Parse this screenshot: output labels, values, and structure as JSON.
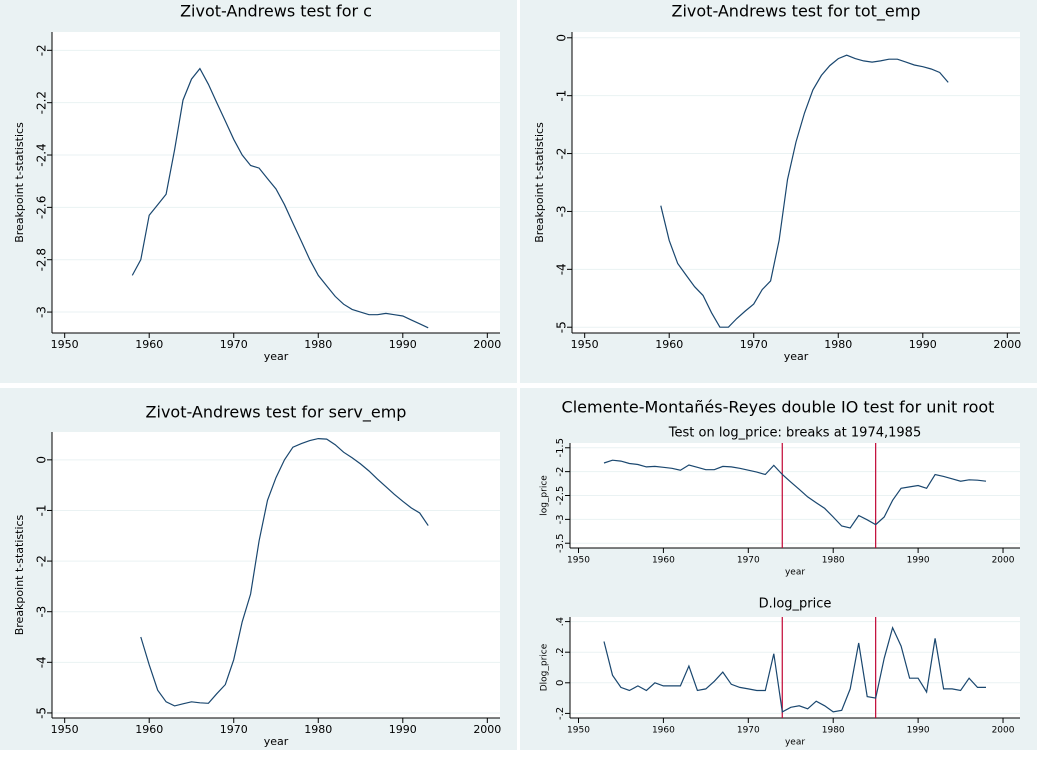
{
  "chart_data": [
    {
      "type": "line",
      "title": "Zivot-Andrews test for c",
      "xlabel": "year",
      "ylabel": "Breakpoint t-statistics",
      "color": "#1a476f",
      "grid": true,
      "x": [
        1958,
        1959,
        1960,
        1961,
        1962,
        1963,
        1964,
        1965,
        1966,
        1967,
        1968,
        1969,
        1970,
        1971,
        1972,
        1973,
        1974,
        1975,
        1976,
        1977,
        1978,
        1979,
        1980,
        1981,
        1982,
        1983,
        1984,
        1985,
        1986,
        1987,
        1988,
        1989,
        1990,
        1991,
        1992,
        1993
      ],
      "values": [
        -2.86,
        -2.8,
        -2.63,
        -2.59,
        -2.55,
        -2.38,
        -2.19,
        -2.11,
        -2.07,
        -2.13,
        -2.2,
        -2.27,
        -2.34,
        -2.4,
        -2.44,
        -2.45,
        -2.49,
        -2.53,
        -2.59,
        -2.66,
        -2.73,
        -2.8,
        -2.86,
        -2.9,
        -2.94,
        -2.97,
        -2.99,
        -3.0,
        -3.01,
        -3.01,
        -3.005,
        -3.01,
        -3.015,
        -3.03,
        -3.045,
        -3.06
      ],
      "xlim": [
        1948.5,
        2001.5
      ],
      "xticks": [
        1950,
        1960,
        1970,
        1980,
        1990,
        2000
      ],
      "ylim": [
        -3.08,
        -1.93
      ],
      "yticks": [
        -2,
        -2.2,
        -2.4,
        -2.6,
        -2.8,
        -3
      ]
    },
    {
      "type": "line",
      "title": "Zivot-Andrews test for tot_emp",
      "xlabel": "year",
      "ylabel": "Breakpoint t-statistics",
      "color": "#1a476f",
      "grid": true,
      "x": [
        1959,
        1960,
        1961,
        1962,
        1963,
        1964,
        1965,
        1966,
        1967,
        1968,
        1969,
        1970,
        1971,
        1972,
        1973,
        1974,
        1975,
        1976,
        1977,
        1978,
        1979,
        1980,
        1981,
        1982,
        1983,
        1984,
        1985,
        1986,
        1987,
        1988,
        1989,
        1990,
        1991,
        1992,
        1993
      ],
      "values": [
        -2.9,
        -3.5,
        -3.9,
        -4.1,
        -4.3,
        -4.45,
        -4.75,
        -5.0,
        -5.0,
        -4.85,
        -4.72,
        -4.6,
        -4.35,
        -4.2,
        -3.5,
        -2.45,
        -1.8,
        -1.3,
        -0.9,
        -0.65,
        -0.48,
        -0.36,
        -0.3,
        -0.36,
        -0.4,
        -0.42,
        -0.4,
        -0.37,
        -0.37,
        -0.42,
        -0.47,
        -0.5,
        -0.54,
        -0.6,
        -0.77
      ],
      "xlim": [
        1948.5,
        2001.5
      ],
      "xticks": [
        1950,
        1960,
        1970,
        1980,
        1990,
        2000
      ],
      "ylim": [
        -5.1,
        0.1
      ],
      "yticks": [
        0,
        -1,
        -2,
        -3,
        -4,
        -5
      ]
    },
    {
      "type": "line",
      "title": "Zivot-Andrews test for serv_emp",
      "xlabel": "year",
      "ylabel": "Breakpoint t-statistics",
      "color": "#1a476f",
      "grid": true,
      "x": [
        1959,
        1960,
        1961,
        1962,
        1963,
        1964,
        1965,
        1966,
        1967,
        1968,
        1969,
        1970,
        1971,
        1972,
        1973,
        1974,
        1975,
        1976,
        1977,
        1978,
        1979,
        1980,
        1981,
        1982,
        1983,
        1984,
        1985,
        1986,
        1987,
        1988,
        1989,
        1990,
        1991,
        1992,
        1993
      ],
      "values": [
        -3.5,
        -4.05,
        -4.55,
        -4.78,
        -4.86,
        -4.82,
        -4.78,
        -4.8,
        -4.81,
        -4.62,
        -4.44,
        -3.95,
        -3.2,
        -2.65,
        -1.6,
        -0.8,
        -0.35,
        0.0,
        0.25,
        0.32,
        0.38,
        0.42,
        0.41,
        0.3,
        0.15,
        0.04,
        -0.08,
        -0.22,
        -0.38,
        -0.53,
        -0.68,
        -0.82,
        -0.95,
        -1.05,
        -1.3
      ],
      "xlim": [
        1948.5,
        2001.5
      ],
      "xticks": [
        1950,
        1960,
        1970,
        1980,
        1990,
        2000
      ],
      "ylim": [
        -5.1,
        0.55
      ],
      "yticks": [
        0,
        -1,
        -2,
        -3,
        -4,
        -5
      ]
    },
    {
      "type": "line",
      "panel_title": "Clemente-Montañés-Reyes double IO test for unit root",
      "title": "Test on log_price: breaks at 1974,1985",
      "xlabel": "year",
      "ylabel": "log_price",
      "color": "#1a476f",
      "grid": true,
      "breaks": [
        1974,
        1985
      ],
      "break_color": "#c10534",
      "x": [
        1953,
        1954,
        1955,
        1956,
        1957,
        1958,
        1959,
        1960,
        1961,
        1962,
        1963,
        1964,
        1965,
        1966,
        1967,
        1968,
        1969,
        1970,
        1971,
        1972,
        1973,
        1974,
        1975,
        1976,
        1977,
        1978,
        1979,
        1980,
        1981,
        1982,
        1983,
        1984,
        1985,
        1986,
        1987,
        1988,
        1989,
        1990,
        1991,
        1992,
        1993,
        1994,
        1995,
        1996,
        1997,
        1998
      ],
      "values": [
        -1.82,
        -1.76,
        -1.78,
        -1.83,
        -1.85,
        -1.9,
        -1.89,
        -1.91,
        -1.93,
        -1.97,
        -1.86,
        -1.91,
        -1.96,
        -1.96,
        -1.89,
        -1.9,
        -1.93,
        -1.97,
        -2.01,
        -2.06,
        -1.87,
        -2.06,
        -2.22,
        -2.37,
        -2.53,
        -2.65,
        -2.77,
        -2.95,
        -3.14,
        -3.18,
        -2.92,
        -3.01,
        -3.11,
        -2.95,
        -2.6,
        -2.35,
        -2.32,
        -2.29,
        -2.35,
        -2.06,
        -2.1,
        -2.15,
        -2.2,
        -2.17,
        -2.18,
        -2.2
      ],
      "xlim": [
        1949,
        2002
      ],
      "xticks": [
        1950,
        1960,
        1970,
        1980,
        1990,
        2000
      ],
      "ylim": [
        -3.6,
        -1.4
      ],
      "yticks": [
        -1.5,
        -2,
        -2.5,
        -3,
        -3.5
      ]
    },
    {
      "type": "line",
      "title": "D.log_price",
      "xlabel": "year",
      "ylabel": "Dlog_price",
      "color": "#1a476f",
      "grid": true,
      "breaks": [
        1974,
        1985
      ],
      "break_color": "#c10534",
      "x": [
        1953,
        1954,
        1955,
        1956,
        1957,
        1958,
        1959,
        1960,
        1961,
        1962,
        1963,
        1964,
        1965,
        1966,
        1967,
        1968,
        1969,
        1970,
        1971,
        1972,
        1973,
        1974,
        1975,
        1976,
        1977,
        1978,
        1979,
        1980,
        1981,
        1982,
        1983,
        1984,
        1985,
        1986,
        1987,
        1988,
        1989,
        1990,
        1991,
        1992,
        1993,
        1994,
        1995,
        1996,
        1997,
        1998
      ],
      "values": [
        0.27,
        0.05,
        -0.03,
        -0.05,
        -0.02,
        -0.05,
        0.0,
        -0.02,
        -0.02,
        -0.02,
        0.11,
        -0.05,
        -0.04,
        0.01,
        0.07,
        -0.01,
        -0.03,
        -0.04,
        -0.05,
        -0.05,
        0.19,
        -0.19,
        -0.16,
        -0.15,
        -0.17,
        -0.12,
        -0.15,
        -0.19,
        -0.18,
        -0.04,
        0.26,
        -0.09,
        -0.1,
        0.16,
        0.36,
        0.24,
        0.03,
        0.03,
        -0.06,
        0.29,
        -0.04,
        -0.04,
        -0.05,
        0.03,
        -0.03,
        -0.03
      ],
      "xlim": [
        1949,
        2002
      ],
      "xticks": [
        1950,
        1960,
        1970,
        1980,
        1990,
        2000
      ],
      "ylim": [
        -0.23,
        0.43
      ],
      "yticks": [
        {
          "value": 0.4,
          "label": ".4"
        },
        {
          "value": 0.2,
          "label": ".2"
        },
        0,
        {
          "value": -0.2,
          "label": "-.2"
        }
      ]
    }
  ]
}
